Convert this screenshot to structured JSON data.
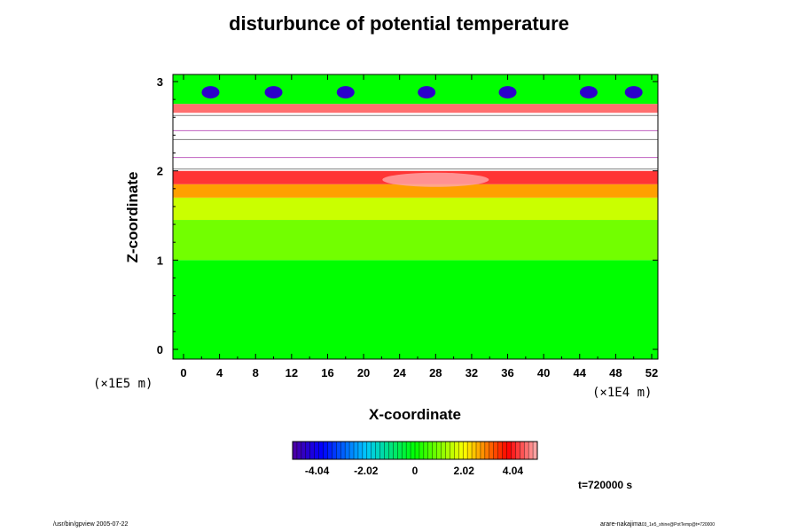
{
  "chart_data": {
    "type": "heatmap",
    "title": "disturbunce of potential temperature",
    "xlabel": "X-coordinate",
    "ylabel": "Z-coordinate",
    "x_unit_label": "(×1E4 m)",
    "y_unit_label": "(×1E5 m)",
    "xlim": [
      0,
      52
    ],
    "ylim": [
      0,
      3
    ],
    "x_ticks": [
      "0",
      "4",
      "8",
      "12",
      "16",
      "20",
      "24",
      "28",
      "32",
      "36",
      "40",
      "44",
      "48",
      "52"
    ],
    "y_ticks": [
      "0",
      "1",
      "2",
      "3"
    ],
    "colorbar": {
      "min": -5.05,
      "max": 5.05,
      "tick_labels": [
        "-4.04",
        "-2.02",
        "0",
        "2.02",
        "4.04"
      ],
      "tick_values": [
        -4.04,
        -2.02,
        0,
        2.02,
        4.04
      ]
    },
    "field_layers": [
      {
        "z_from": 0.0,
        "z_to": 1.0,
        "value": 0.0
      },
      {
        "z_from": 1.0,
        "z_to": 1.45,
        "value": 0.9
      },
      {
        "z_from": 1.45,
        "z_to": 1.7,
        "value": 1.6
      },
      {
        "z_from": 1.7,
        "z_to": 1.85,
        "value": 2.7
      },
      {
        "z_from": 1.85,
        "z_to": 2.0,
        "value": 4.2
      },
      {
        "z_from": 2.0,
        "z_to": 2.65,
        "value": null
      },
      {
        "z_from": 2.65,
        "z_to": 2.75,
        "value": 4.6
      },
      {
        "z_from": 2.75,
        "z_to": 3.0,
        "value": 0.0
      }
    ],
    "cold_patches_x": [
      3,
      10,
      18,
      27,
      36,
      45,
      50
    ],
    "warm_peak_x": 28,
    "grid": false
  },
  "timestamp": "t=720000 s",
  "footer_left": "/usr/bin/gpview 2005-07-22",
  "footer_right": "arare-nakajima",
  "footer_right_sub": "03_1e5_shine@PotTemp@t=720000"
}
